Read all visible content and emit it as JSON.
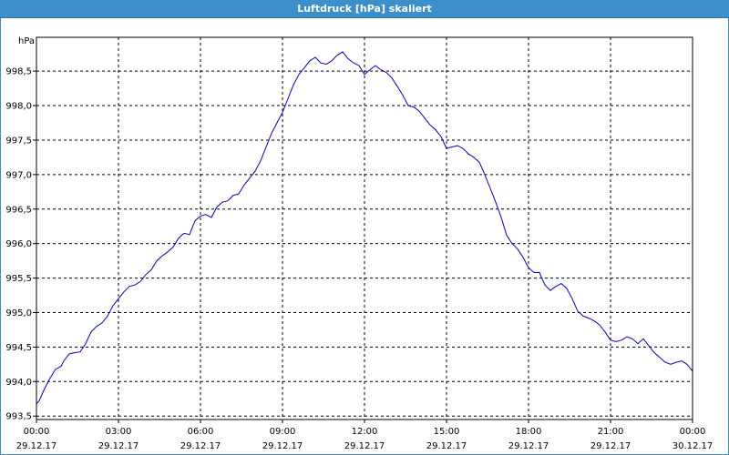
{
  "window": {
    "title": "Luftdruck [hPa] skaliert"
  },
  "colors": {
    "titlebar": "#3c8fc8",
    "line": "#0000cc",
    "grid": "#000000"
  },
  "chart_data": {
    "type": "line",
    "title": "Luftdruck [hPa] skaliert",
    "ylabel": "hPa",
    "xlabel": "",
    "ylim": [
      993.45,
      998.99
    ],
    "xlim": [
      0,
      24
    ],
    "grid": true,
    "yticks": [
      {
        "value": 993.5,
        "label": "993,5"
      },
      {
        "value": 994.0,
        "label": "994,0"
      },
      {
        "value": 994.5,
        "label": "994,5"
      },
      {
        "value": 995.0,
        "label": "995,0"
      },
      {
        "value": 995.5,
        "label": "995,5"
      },
      {
        "value": 996.0,
        "label": "996,0"
      },
      {
        "value": 996.5,
        "label": "996,5"
      },
      {
        "value": 997.0,
        "label": "997,0"
      },
      {
        "value": 997.5,
        "label": "997,5"
      },
      {
        "value": 998.0,
        "label": "998,0"
      },
      {
        "value": 998.5,
        "label": "998,5"
      }
    ],
    "xticks": [
      {
        "value": 0,
        "time": "00:00",
        "date": "29.12.17"
      },
      {
        "value": 3,
        "time": "03:00",
        "date": "29.12.17"
      },
      {
        "value": 6,
        "time": "06:00",
        "date": "29.12.17"
      },
      {
        "value": 9,
        "time": "09:00",
        "date": "29.12.17"
      },
      {
        "value": 12,
        "time": "12:00",
        "date": "29.12.17"
      },
      {
        "value": 15,
        "time": "15:00",
        "date": "29.12.17"
      },
      {
        "value": 18,
        "time": "18:00",
        "date": "29.12.17"
      },
      {
        "value": 21,
        "time": "21:00",
        "date": "29.12.17"
      },
      {
        "value": 24,
        "time": "00:00",
        "date": "30.12.17"
      }
    ],
    "series": [
      {
        "x": [
          0,
          0.1,
          0.3,
          0.5,
          0.7,
          0.9,
          1.0,
          1.2,
          1.4,
          1.6,
          1.8,
          2.0,
          2.2,
          2.4,
          2.6,
          2.8,
          3.0,
          3.2,
          3.4,
          3.6,
          3.8,
          4.0,
          4.2,
          4.4,
          4.6,
          4.8,
          5.0,
          5.2,
          5.4,
          5.6,
          5.8,
          6.0,
          6.2,
          6.4,
          6.6,
          6.8,
          7.0,
          7.2,
          7.4,
          7.6,
          7.8,
          8.0,
          8.2,
          8.4,
          8.6,
          8.8,
          9.0,
          9.2,
          9.4,
          9.6,
          9.8,
          10.0,
          10.2,
          10.4,
          10.6,
          10.8,
          11.0,
          11.2,
          11.4,
          11.6,
          11.8,
          12.0,
          12.2,
          12.4,
          12.6,
          12.8,
          13.0,
          13.2,
          13.4,
          13.6,
          13.8,
          14.0,
          14.2,
          14.4,
          14.6,
          14.8,
          15.0,
          15.2,
          15.4,
          15.6,
          15.8,
          16.0,
          16.2,
          16.4,
          16.6,
          16.8,
          17.0,
          17.2,
          17.4,
          17.6,
          17.8,
          18.0,
          18.2,
          18.4,
          18.6,
          18.8,
          19.0,
          19.2,
          19.4,
          19.6,
          19.8,
          20.0,
          20.2,
          20.4,
          20.6,
          20.8,
          21.0,
          21.2,
          21.4,
          21.6,
          21.8,
          22.0,
          22.2,
          22.4,
          22.6,
          22.8,
          23.0,
          23.2,
          23.4,
          23.6,
          23.8,
          24.0
        ],
        "y": [
          993.68,
          993.72,
          993.9,
          994.05,
          994.18,
          994.22,
          994.3,
          994.4,
          994.42,
          994.43,
          994.55,
          994.72,
          994.8,
          994.85,
          994.95,
          995.1,
          995.2,
          995.3,
          995.38,
          995.4,
          995.45,
          995.55,
          995.62,
          995.75,
          995.82,
          995.88,
          995.95,
          996.08,
          996.15,
          996.13,
          996.33,
          996.4,
          996.42,
          996.38,
          996.53,
          996.6,
          996.62,
          996.7,
          996.72,
          996.85,
          996.95,
          997.05,
          997.2,
          997.4,
          997.6,
          997.75,
          997.9,
          998.1,
          998.3,
          998.45,
          998.55,
          998.65,
          998.7,
          998.62,
          998.6,
          998.65,
          998.73,
          998.78,
          998.68,
          998.62,
          998.58,
          998.45,
          998.52,
          998.58,
          998.52,
          998.48,
          998.4,
          998.28,
          998.15,
          998.0,
          997.98,
          997.92,
          997.82,
          997.72,
          997.65,
          997.55,
          997.38,
          997.4,
          997.42,
          997.38,
          997.3,
          997.25,
          997.18,
          997.0,
          996.8,
          996.6,
          996.38,
          996.12,
          996.0,
          995.92,
          995.8,
          995.65,
          995.58,
          995.58,
          995.4,
          995.32,
          995.38,
          995.42,
          995.35,
          995.2,
          995.02,
          994.95,
          994.92,
          994.88,
          994.82,
          994.72,
          994.6,
          994.58,
          994.6,
          994.65,
          994.62,
          994.55,
          994.62,
          994.52,
          994.42,
          994.35,
          994.28,
          994.25,
          994.28,
          994.3,
          994.25,
          994.15
        ]
      }
    ]
  }
}
